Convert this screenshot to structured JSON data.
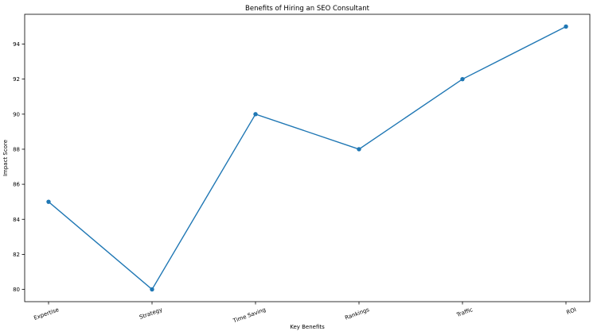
{
  "chart_data": {
    "type": "line",
    "title": "Benefits of Hiring an SEO Consultant",
    "xlabel": "Key Benefits",
    "ylabel": "Impact Score",
    "categories": [
      "Expertise",
      "Strategy",
      "Time Saving",
      "Rankings",
      "Traffic",
      "ROI"
    ],
    "series": [
      {
        "values": [
          85,
          80,
          90,
          88,
          92,
          95
        ]
      }
    ],
    "ylim": [
      79.3,
      95.7
    ],
    "yticks": [
      80,
      82,
      84,
      86,
      88,
      90,
      92,
      94
    ],
    "grid": false,
    "legend": "none",
    "line_color": "#1f77b4",
    "marker": "circle"
  }
}
